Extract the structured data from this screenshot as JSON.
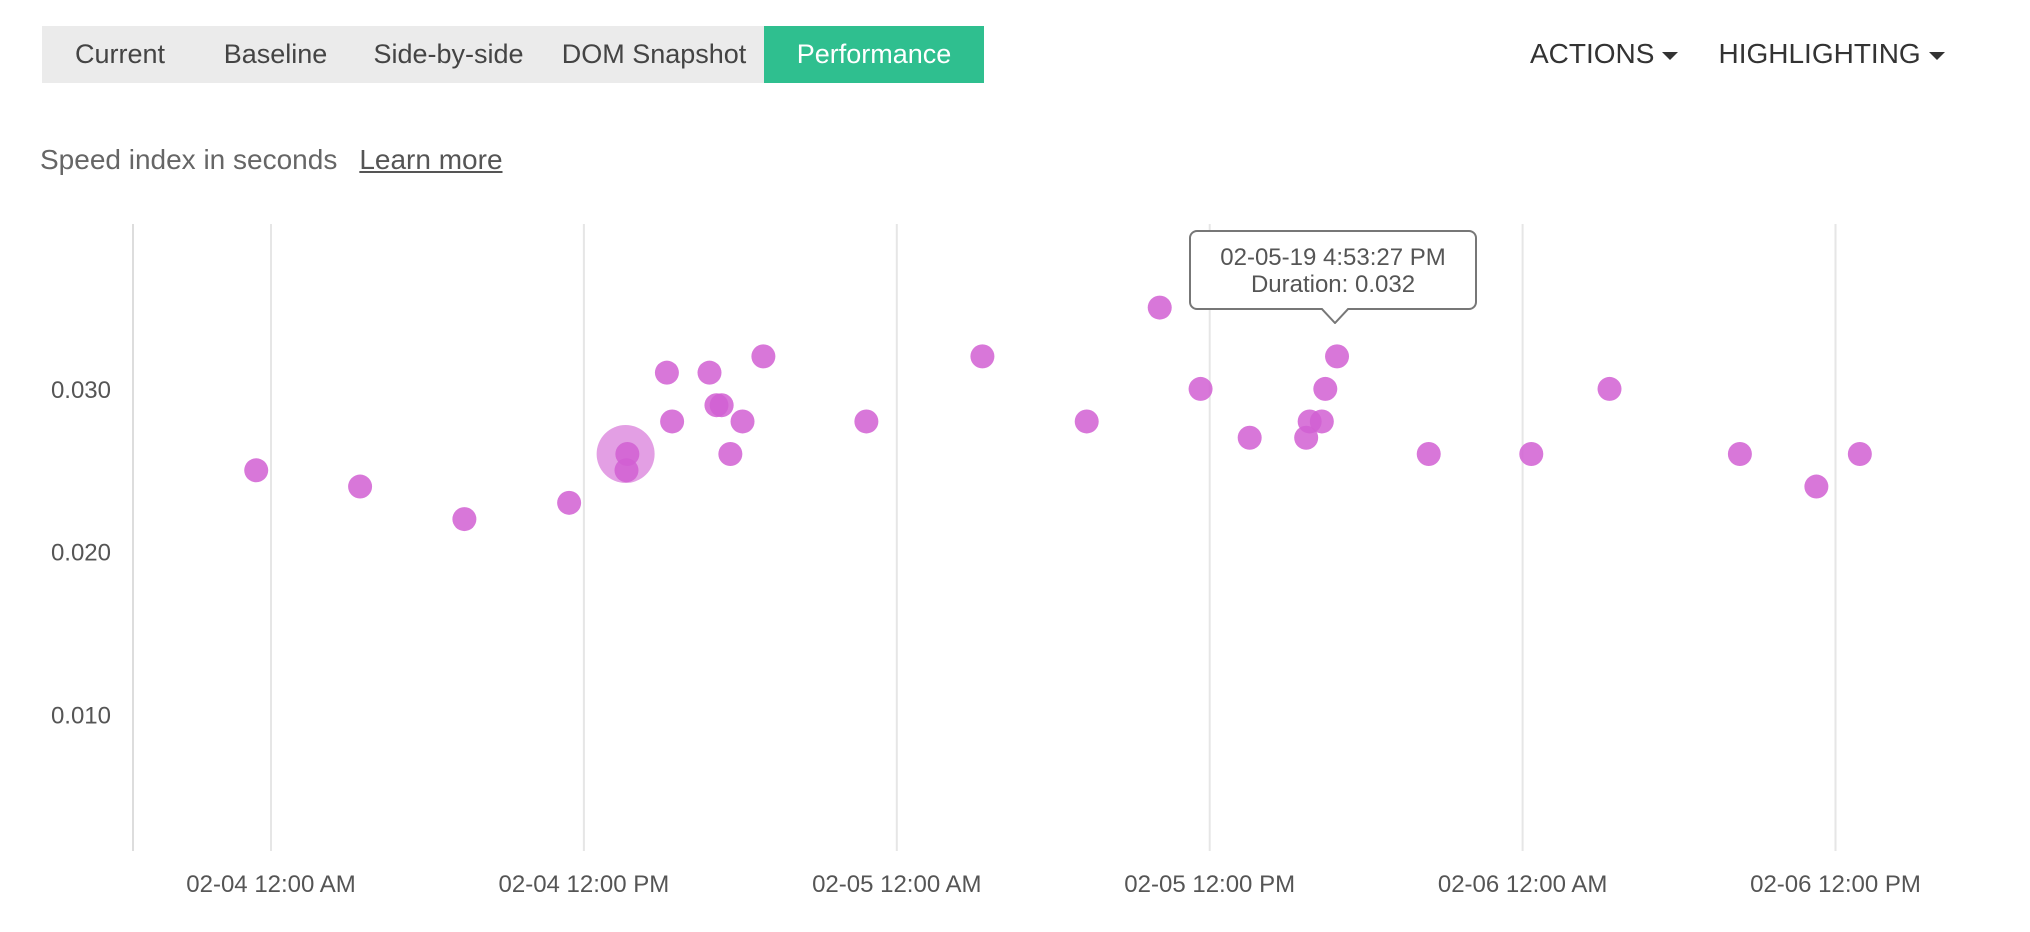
{
  "tabs": [
    {
      "label": "Current",
      "active": false
    },
    {
      "label": "Baseline",
      "active": false
    },
    {
      "label": "Side-by-side",
      "active": false
    },
    {
      "label": "DOM Snapshot",
      "active": false
    },
    {
      "label": "Performance",
      "active": true
    }
  ],
  "menus": {
    "actions": "ACTIONS",
    "highlighting": "HIGHLIGHTING"
  },
  "subtitle": "Speed index in seconds",
  "learn_more": "Learn more",
  "tooltip": {
    "line1": "02-05-19 4:53:27 PM",
    "line2": "Duration: 0.032"
  },
  "colors": {
    "accent": "#2fbf8f",
    "point": "#d15fd2"
  },
  "chart_data": {
    "type": "scatter",
    "ylabel": "Speed index in seconds",
    "y_ticks": [
      0.01,
      0.02,
      0.03
    ],
    "y_tick_labels": [
      "0.010",
      "0.020",
      "0.030"
    ],
    "x_ticks": [
      "02-04 12:00 AM",
      "02-04 12:00 PM",
      "02-05 12:00 AM",
      "02-05 12:00 PM",
      "02-06 12:00 AM",
      "02-06 12:00 PM"
    ],
    "points": [
      {
        "t": "02-03 11:26 PM",
        "y": 0.025
      },
      {
        "t": "02-04 3:25 AM",
        "y": 0.024
      },
      {
        "t": "02-04 7:25 AM",
        "y": 0.022
      },
      {
        "t": "02-04 11:26 AM",
        "y": 0.023
      },
      {
        "t": "02-04 1:36 PM",
        "y": 0.026,
        "highlight": true
      },
      {
        "t": "02-04 1:40 PM",
        "y": 0.026
      },
      {
        "t": "02-04 1:38 PM",
        "y": 0.025
      },
      {
        "t": "02-04 3:11 PM",
        "y": 0.031
      },
      {
        "t": "02-04 3:23 PM",
        "y": 0.028
      },
      {
        "t": "02-04 4:49 PM",
        "y": 0.031
      },
      {
        "t": "02-04 5:05 PM",
        "y": 0.029
      },
      {
        "t": "02-04 5:17 PM",
        "y": 0.029
      },
      {
        "t": "02-04 5:37 PM",
        "y": 0.026
      },
      {
        "t": "02-04 6:05 PM",
        "y": 0.028
      },
      {
        "t": "02-04 6:53 PM",
        "y": 0.032
      },
      {
        "t": "02-04 10:50 PM",
        "y": 0.028
      },
      {
        "t": "02-05 3:17 AM",
        "y": 0.032
      },
      {
        "t": "02-05 7:17 AM",
        "y": 0.028
      },
      {
        "t": "02-05 10:05 AM",
        "y": 0.035
      },
      {
        "t": "02-05 11:39 AM",
        "y": 0.03
      },
      {
        "t": "02-05 1:32 PM",
        "y": 0.027
      },
      {
        "t": "02-05 3:42 PM",
        "y": 0.027
      },
      {
        "t": "02-05 3:50 PM",
        "y": 0.028
      },
      {
        "t": "02-05 4:18 PM",
        "y": 0.028
      },
      {
        "t": "02-05 4:26 PM",
        "y": 0.03
      },
      {
        "t": "02-05 4:53 PM",
        "y": 0.032,
        "hovered": true
      },
      {
        "t": "02-05 8:24 PM",
        "y": 0.026
      },
      {
        "t": "02-06 12:20 AM",
        "y": 0.026
      },
      {
        "t": "02-06 3:20 AM",
        "y": 0.03
      },
      {
        "t": "02-06 8:20 AM",
        "y": 0.026
      },
      {
        "t": "02-06 11:16 AM",
        "y": 0.024
      },
      {
        "t": "02-06 12:56 PM",
        "y": 0.026
      }
    ],
    "grid": true,
    "legend": "none"
  }
}
